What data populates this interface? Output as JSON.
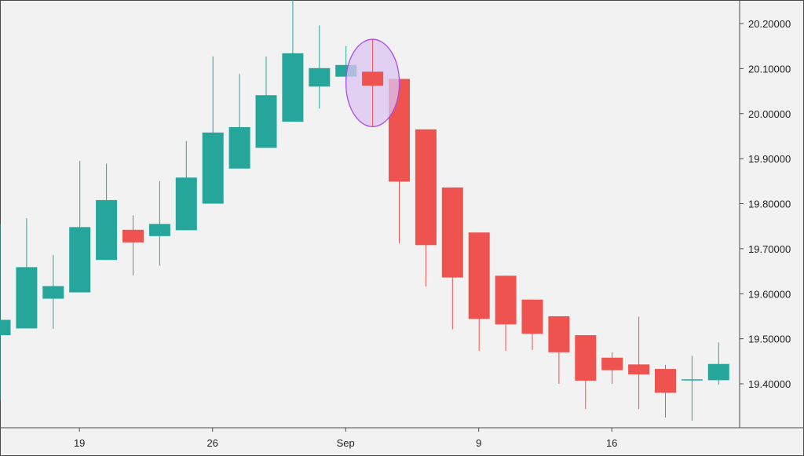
{
  "chart_data": {
    "type": "candlestick",
    "title": "",
    "xlabel": "",
    "ylabel": "",
    "ylim": [
      19.3,
      20.25
    ],
    "y_ticks": [
      "20.20000",
      "20.10000",
      "20.00000",
      "19.90000",
      "19.80000",
      "19.70000",
      "19.60000",
      "19.50000",
      "19.40000"
    ],
    "x_ticks": [
      {
        "label": "19",
        "index": 3
      },
      {
        "label": "26",
        "index": 8
      },
      {
        "label": "Sep",
        "index": 13
      },
      {
        "label": "9",
        "index": 18
      },
      {
        "label": "16",
        "index": 23
      }
    ],
    "grid": false,
    "colors": {
      "up": "#26a69a",
      "down": "#ef5350",
      "highlight_fill": "#dcc4f2",
      "highlight_stroke": "#a64dea"
    },
    "highlight": {
      "candle_index": 14,
      "shape": "ellipse"
    },
    "candles": [
      {
        "o": 19.508,
        "h": 19.755,
        "l": 19.364,
        "c": 19.542
      },
      {
        "o": 19.523,
        "h": 19.768,
        "l": 19.523,
        "c": 19.659
      },
      {
        "o": 19.589,
        "h": 19.686,
        "l": 19.522,
        "c": 19.617
      },
      {
        "o": 19.603,
        "h": 19.895,
        "l": 19.603,
        "c": 19.748
      },
      {
        "o": 19.675,
        "h": 19.889,
        "l": 19.675,
        "c": 19.808
      },
      {
        "o": 19.742,
        "h": 19.774,
        "l": 19.641,
        "c": 19.714
      },
      {
        "o": 19.728,
        "h": 19.85,
        "l": 19.662,
        "c": 19.755
      },
      {
        "o": 19.741,
        "h": 19.939,
        "l": 19.741,
        "c": 19.858
      },
      {
        "o": 19.8,
        "h": 20.127,
        "l": 19.8,
        "c": 19.958
      },
      {
        "o": 19.878,
        "h": 20.088,
        "l": 19.878,
        "c": 19.97
      },
      {
        "o": 19.924,
        "h": 20.127,
        "l": 19.924,
        "c": 20.041
      },
      {
        "o": 19.982,
        "h": 20.253,
        "l": 19.982,
        "c": 20.134
      },
      {
        "o": 20.06,
        "h": 20.196,
        "l": 20.011,
        "c": 20.101
      },
      {
        "o": 20.082,
        "h": 20.15,
        "l": 20.06,
        "c": 20.108
      },
      {
        "o": 20.093,
        "h": 20.165,
        "l": 19.971,
        "c": 20.062
      },
      {
        "o": 20.077,
        "h": 20.077,
        "l": 19.712,
        "c": 19.849
      },
      {
        "o": 19.965,
        "h": 19.965,
        "l": 19.616,
        "c": 19.708
      },
      {
        "o": 19.836,
        "h": 19.836,
        "l": 19.521,
        "c": 19.636
      },
      {
        "o": 19.736,
        "h": 19.736,
        "l": 19.473,
        "c": 19.544
      },
      {
        "o": 19.64,
        "h": 19.64,
        "l": 19.473,
        "c": 19.532
      },
      {
        "o": 19.587,
        "h": 19.587,
        "l": 19.475,
        "c": 19.511
      },
      {
        "o": 19.55,
        "h": 19.55,
        "l": 19.4,
        "c": 19.47
      },
      {
        "o": 19.508,
        "h": 19.508,
        "l": 19.344,
        "c": 19.407
      },
      {
        "o": 19.458,
        "h": 19.47,
        "l": 19.4,
        "c": 19.43
      },
      {
        "o": 19.443,
        "h": 19.549,
        "l": 19.344,
        "c": 19.421
      },
      {
        "o": 19.433,
        "h": 19.442,
        "l": 19.325,
        "c": 19.38
      },
      {
        "o": 19.408,
        "h": 19.462,
        "l": 19.318,
        "c": 19.41
      },
      {
        "o": 19.408,
        "h": 19.492,
        "l": 19.398,
        "c": 19.444
      }
    ]
  }
}
